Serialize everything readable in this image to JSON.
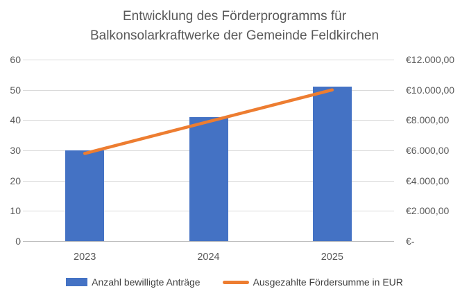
{
  "title": {
    "line1": "Entwicklung des Förderprogramms für",
    "line2": "Balkonsolarkraftwerke der Gemeinde Feldkirchen"
  },
  "chart_data": {
    "type": "combo",
    "title": "Entwicklung des Förderprogramms für Balkonsolarkraftwerke der Gemeinde Feldkirchen",
    "categories": [
      "2023",
      "2024",
      "2025"
    ],
    "series": [
      {
        "name": "Anzahl bewilligte Anträge",
        "type": "bar",
        "axis": "left",
        "values": [
          30,
          41,
          51
        ],
        "color": "#4472C4"
      },
      {
        "name": "Ausgezahlte Fördersumme in EUR",
        "type": "line",
        "axis": "right",
        "values": [
          5800,
          7900,
          10000
        ],
        "color": "#ED7D31"
      }
    ],
    "left_axis": {
      "min": 0,
      "max": 60,
      "tick_step": 10,
      "tick_labels_top_down": [
        "60",
        "50",
        "40",
        "30",
        "20",
        "10",
        "0"
      ]
    },
    "right_axis": {
      "min": 0,
      "max": 12000,
      "tick_step": 2000,
      "tick_labels_top_down": [
        "€12.000,00",
        "€10.000,00",
        "€8.000,00",
        "€6.000,00",
        "€4.000,00",
        "€2.000,00",
        "€-"
      ]
    },
    "grid": true,
    "legend_position": "bottom"
  },
  "colors": {
    "bar": "#4472C4",
    "line": "#ED7D31",
    "text": "#595959",
    "gridline": "#d9d9d9",
    "axisline": "#bfbfbf",
    "background": "#ffffff"
  }
}
